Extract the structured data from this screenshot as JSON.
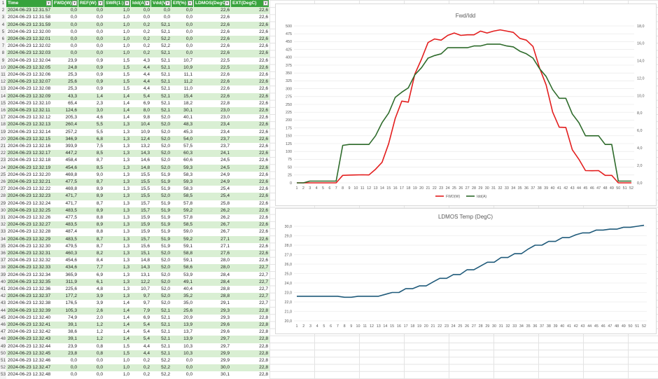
{
  "table": {
    "headers": [
      "Time",
      "FWD(W)",
      "REF(W)",
      "SWR(1:)",
      "Idd(A)",
      "Vdd(V)",
      "Eff(%)",
      "LDMOS(DegC)",
      "EXT(DegC)"
    ],
    "rows": [
      [
        "2024-06-23 12.31.57",
        "0,0",
        "0,0",
        "1,0",
        "0,0",
        "0,0",
        "0,0",
        "22,6",
        "22,6"
      ],
      [
        "2024-06-23 12.31.58",
        "0,0",
        "0,0",
        "1,0",
        "0,0",
        "0,0",
        "0,0",
        "22,6",
        "22,6"
      ],
      [
        "2024-06-23 12.31.59",
        "0,0",
        "0,0",
        "1,0",
        "0,2",
        "52,1",
        "0,0",
        "22,6",
        "22,6"
      ],
      [
        "2024-06-23 12.32.00",
        "0,0",
        "0,0",
        "1,0",
        "0,2",
        "52,1",
        "0,0",
        "22,6",
        "22,6"
      ],
      [
        "2024-06-23 12.32.01",
        "0,0",
        "0,0",
        "1,0",
        "0,2",
        "52,2",
        "0,0",
        "22,6",
        "22,6"
      ],
      [
        "2024-06-23 12.32.02",
        "0,0",
        "0,0",
        "1,0",
        "0,2",
        "52,2",
        "0,0",
        "22,6",
        "22,6"
      ],
      [
        "2024-06-23 12.32.03",
        "0,0",
        "0,0",
        "1,0",
        "0,2",
        "52,1",
        "0,0",
        "22,6",
        "22,6"
      ],
      [
        "2024-06-23 12.32.04",
        "23,9",
        "0,9",
        "1,5",
        "4,3",
        "52,1",
        "10,7",
        "22,5",
        "22,6"
      ],
      [
        "2024-06-23 12.32.05",
        "24,8",
        "0,9",
        "1,5",
        "4,4",
        "52,1",
        "10,9",
        "22,5",
        "22,6"
      ],
      [
        "2024-06-23 12.32.06",
        "25,3",
        "0,9",
        "1,5",
        "4,4",
        "52,1",
        "11,1",
        "22,6",
        "22,6"
      ],
      [
        "2024-06-23 12.32.07",
        "25,6",
        "0,9",
        "1,5",
        "4,4",
        "52,1",
        "11,2",
        "22,6",
        "22,6"
      ],
      [
        "2024-06-23 12.32.08",
        "25,3",
        "0,9",
        "1,5",
        "4,4",
        "52,1",
        "11,0",
        "22,6",
        "22,6"
      ],
      [
        "2024-06-23 12.32.09",
        "43,3",
        "1,4",
        "1,4",
        "5,4",
        "52,1",
        "15,4",
        "22,6",
        "22,6"
      ],
      [
        "2024-06-23 12.32.10",
        "65,4",
        "2,3",
        "1,4",
        "6,9",
        "52,1",
        "18,2",
        "22,8",
        "22,6"
      ],
      [
        "2024-06-23 12.32.11",
        "124,6",
        "3,0",
        "1,4",
        "8,0",
        "52,1",
        "30,1",
        "23,0",
        "22,6"
      ],
      [
        "2024-06-23 12.32.12",
        "205,3",
        "4,6",
        "1,4",
        "9,8",
        "52,0",
        "40,1",
        "23,0",
        "22,6"
      ],
      [
        "2024-06-23 12.32.13",
        "260,4",
        "5,5",
        "1,3",
        "10,4",
        "52,0",
        "48,3",
        "23,4",
        "22,6"
      ],
      [
        "2024-06-23 12.32.14",
        "257,2",
        "5,5",
        "1,3",
        "10,9",
        "52,0",
        "45,3",
        "23,4",
        "22,6"
      ],
      [
        "2024-06-23 12.32.15",
        "346,9",
        "6,8",
        "1,3",
        "12,4",
        "52,0",
        "54,0",
        "23,7",
        "22,6"
      ],
      [
        "2024-06-23 12.32.16",
        "393,9",
        "7,5",
        "1,3",
        "13,2",
        "52,0",
        "57,5",
        "23,7",
        "22,6"
      ],
      [
        "2024-06-23 12.32.17",
        "447,2",
        "8,5",
        "1,3",
        "14,3",
        "52,0",
        "60,3",
        "24,1",
        "22,6"
      ],
      [
        "2024-06-23 12.32.18",
        "458,4",
        "8,7",
        "1,3",
        "14,6",
        "52,0",
        "60,6",
        "24,5",
        "22,6"
      ],
      [
        "2024-06-23 12.32.19",
        "454,6",
        "8,5",
        "1,3",
        "14,8",
        "52,0",
        "59,3",
        "24,5",
        "22,6"
      ],
      [
        "2024-06-23 12.32.20",
        "469,8",
        "9,0",
        "1,3",
        "15,5",
        "51,9",
        "58,3",
        "24,9",
        "22,6"
      ],
      [
        "2024-06-23 12.32.21",
        "477,5",
        "8,7",
        "1,3",
        "15,5",
        "51,9",
        "59,3",
        "24,9",
        "22,6"
      ],
      [
        "2024-06-23 12.32.22",
        "469,8",
        "8,9",
        "1,3",
        "15,5",
        "51,9",
        "58,3",
        "25,4",
        "22,6"
      ],
      [
        "2024-06-23 12.32.23",
        "471,7",
        "8,9",
        "1,3",
        "15,5",
        "52,0",
        "58,5",
        "25,4",
        "22,6"
      ],
      [
        "2024-06-23 12.32.24",
        "471,7",
        "8,7",
        "1,3",
        "15,7",
        "51,9",
        "57,8",
        "25,8",
        "22,6"
      ],
      [
        "2024-06-23 12.32.25",
        "483,5",
        "8,9",
        "1,3",
        "15,7",
        "51,9",
        "59,2",
        "26,2",
        "22,6"
      ],
      [
        "2024-06-23 12.32.26",
        "477,5",
        "8,8",
        "1,3",
        "15,9",
        "51,9",
        "57,8",
        "26,2",
        "22,6"
      ],
      [
        "2024-06-23 12.32.27",
        "483,5",
        "8,9",
        "1,3",
        "15,9",
        "51,9",
        "58,5",
        "26,7",
        "22,6"
      ],
      [
        "2024-06-23 12.32.28",
        "487,4",
        "8,8",
        "1,3",
        "15,9",
        "51,9",
        "59,0",
        "26,7",
        "22,6"
      ],
      [
        "2024-06-23 12.32.29",
        "483,5",
        "8,7",
        "1,3",
        "15,7",
        "51,9",
        "59,2",
        "27,1",
        "22,6"
      ],
      [
        "2024-06-23 12.32.30",
        "479,5",
        "8,7",
        "1,3",
        "15,6",
        "51,9",
        "59,1",
        "27,1",
        "22,6"
      ],
      [
        "2024-06-23 12.32.31",
        "460,3",
        "8,2",
        "1,3",
        "15,1",
        "52,0",
        "58,8",
        "27,6",
        "22,6"
      ],
      [
        "2024-06-23 12.32.32",
        "454,6",
        "8,4",
        "1,3",
        "14,8",
        "52,0",
        "59,1",
        "28,0",
        "22,6"
      ],
      [
        "2024-06-23 12.32.33",
        "434,6",
        "7,7",
        "1,3",
        "14,3",
        "52,0",
        "58,6",
        "28,0",
        "22,7"
      ],
      [
        "2024-06-23 12.32.34",
        "365,9",
        "6,9",
        "1,3",
        "13,1",
        "52,0",
        "53,9",
        "28,4",
        "22,7"
      ],
      [
        "2024-06-23 12.32.35",
        "311,9",
        "6,1",
        "1,3",
        "12,2",
        "52,0",
        "49,1",
        "28,4",
        "22,7"
      ],
      [
        "2024-06-23 12.32.36",
        "225,6",
        "4,8",
        "1,3",
        "10,7",
        "52,0",
        "40,4",
        "28,8",
        "22,7"
      ],
      [
        "2024-06-23 12.32.37",
        "177,2",
        "3,9",
        "1,3",
        "9,7",
        "52,0",
        "35,2",
        "28,8",
        "22,7"
      ],
      [
        "2024-06-23 12.32.38",
        "176,5",
        "3,9",
        "1,4",
        "9,7",
        "52,0",
        "35,0",
        "29,1",
        "22,7"
      ],
      [
        "2024-06-23 12.32.39",
        "105,3",
        "2,6",
        "1,4",
        "7,9",
        "52,1",
        "25,6",
        "29,3",
        "22,8"
      ],
      [
        "2024-06-23 12.32.40",
        "74,9",
        "2,0",
        "1,4",
        "6,9",
        "52,1",
        "20,9",
        "29,3",
        "22,8"
      ],
      [
        "2024-06-23 12.32.41",
        "39,1",
        "1,2",
        "1,4",
        "5,4",
        "52,1",
        "13,9",
        "29,6",
        "22,8"
      ],
      [
        "2024-06-23 12.32.42",
        "38,6",
        "1,2",
        "1,4",
        "5,4",
        "52,1",
        "13,7",
        "29,6",
        "22,8"
      ],
      [
        "2024-06-23 12.32.43",
        "39,1",
        "1,2",
        "1,4",
        "5,4",
        "52,1",
        "13,9",
        "29,7",
        "22,8"
      ],
      [
        "2024-06-23 12.32.44",
        "23,9",
        "0,8",
        "1,5",
        "4,4",
        "52,1",
        "10,3",
        "29,7",
        "22,8"
      ],
      [
        "2024-06-23 12.32.45",
        "23,8",
        "0,8",
        "1,5",
        "4,4",
        "52,1",
        "10,3",
        "29,9",
        "22,8"
      ],
      [
        "2024-06-23 12.32.46",
        "0,0",
        "0,0",
        "1,0",
        "0,2",
        "52,2",
        "0,0",
        "29,9",
        "22,8"
      ],
      [
        "2024-06-23 12.32.47",
        "0,0",
        "0,0",
        "1,0",
        "0,2",
        "52,2",
        "0,0",
        "30,0",
        "22,8"
      ],
      [
        "2024-06-23 12.32.48",
        "0,0",
        "0,0",
        "1,0",
        "0,2",
        "52,2",
        "0,0",
        "30,1",
        "22,8"
      ]
    ]
  },
  "colors": {
    "header": "#37a33c",
    "band": "#d9efd3",
    "fwd": "#e31e1e",
    "idd": "#2e6b2b",
    "temp": "#1f5a7a"
  },
  "chart_data": [
    {
      "type": "line",
      "title": "Fwd/Idd",
      "x": [
        1,
        2,
        3,
        4,
        5,
        6,
        7,
        8,
        9,
        10,
        11,
        12,
        13,
        14,
        15,
        16,
        17,
        18,
        19,
        20,
        21,
        22,
        23,
        24,
        25,
        26,
        27,
        28,
        29,
        30,
        31,
        32,
        33,
        34,
        35,
        36,
        37,
        38,
        39,
        40,
        41,
        42,
        43,
        44,
        45,
        46,
        47,
        48,
        49,
        50,
        51,
        52
      ],
      "ylim": [
        0,
        500
      ],
      "y2lim": [
        0,
        18
      ],
      "y_ticks": [
        "0",
        "25",
        "50",
        "75",
        "100",
        "125",
        "150",
        "175",
        "200",
        "225",
        "250",
        "275",
        "300",
        "325",
        "350",
        "375",
        "400",
        "425",
        "450",
        "475",
        "500"
      ],
      "y2_ticks": [
        "0,0",
        "2,0",
        "4,0",
        "6,0",
        "8,0",
        "10,0",
        "12,0",
        "14,0",
        "16,0",
        "18,0"
      ],
      "series": [
        {
          "name": "FWD(W)",
          "axis": "left",
          "values": [
            0,
            0,
            0,
            0,
            0,
            0,
            0,
            23.9,
            24.8,
            25.3,
            25.6,
            25.3,
            43.3,
            65.4,
            124.6,
            205.3,
            260.4,
            257.2,
            346.9,
            393.9,
            447.2,
            458.4,
            454.6,
            469.8,
            477.5,
            469.8,
            471.7,
            471.7,
            483.5,
            477.5,
            483.5,
            487.4,
            483.5,
            479.5,
            460.3,
            454.6,
            434.6,
            365.9,
            311.9,
            225.6,
            177.2,
            176.5,
            105.3,
            74.9,
            39.1,
            38.6,
            39.1,
            23.9,
            23.8,
            0,
            0,
            0
          ]
        },
        {
          "name": "Idd(A)",
          "axis": "right",
          "values": [
            0,
            0,
            0.2,
            0.2,
            0.2,
            0.2,
            0.2,
            4.3,
            4.4,
            4.4,
            4.4,
            4.4,
            5.4,
            6.9,
            8.0,
            9.8,
            10.4,
            10.9,
            12.4,
            13.2,
            14.3,
            14.6,
            14.8,
            15.5,
            15.5,
            15.5,
            15.5,
            15.7,
            15.7,
            15.9,
            15.9,
            15.9,
            15.7,
            15.6,
            15.1,
            14.8,
            14.3,
            13.1,
            12.2,
            10.7,
            9.7,
            9.7,
            7.9,
            6.9,
            5.4,
            5.4,
            5.4,
            4.4,
            4.4,
            0.2,
            0.2,
            0.2
          ]
        }
      ],
      "legend": "bottom"
    },
    {
      "type": "line",
      "title": "LDMOS Temp (DegC)",
      "x": [
        1,
        2,
        3,
        4,
        5,
        6,
        7,
        8,
        9,
        10,
        11,
        12,
        13,
        14,
        15,
        16,
        17,
        18,
        19,
        20,
        21,
        22,
        23,
        24,
        25,
        26,
        27,
        28,
        29,
        30,
        31,
        32,
        33,
        34,
        35,
        36,
        37,
        38,
        39,
        40,
        41,
        42,
        43,
        44,
        45,
        46,
        47,
        48,
        49,
        50,
        51,
        52
      ],
      "ylim": [
        20,
        30
      ],
      "y_ticks": [
        "20,0",
        "21,0",
        "22,0",
        "23,0",
        "24,0",
        "25,0",
        "26,0",
        "27,0",
        "28,0",
        "29,0",
        "30,0"
      ],
      "series": [
        {
          "name": "LDMOS(DegC)",
          "values": [
            22.6,
            22.6,
            22.6,
            22.6,
            22.6,
            22.6,
            22.6,
            22.5,
            22.5,
            22.6,
            22.6,
            22.6,
            22.6,
            22.8,
            23.0,
            23.0,
            23.4,
            23.4,
            23.7,
            23.7,
            24.1,
            24.5,
            24.5,
            24.9,
            24.9,
            25.4,
            25.4,
            25.8,
            26.2,
            26.2,
            26.7,
            26.7,
            27.1,
            27.1,
            27.6,
            28.0,
            28.0,
            28.4,
            28.4,
            28.8,
            28.8,
            29.1,
            29.3,
            29.3,
            29.6,
            29.6,
            29.7,
            29.7,
            29.9,
            29.9,
            30.0,
            30.1
          ]
        }
      ]
    }
  ]
}
